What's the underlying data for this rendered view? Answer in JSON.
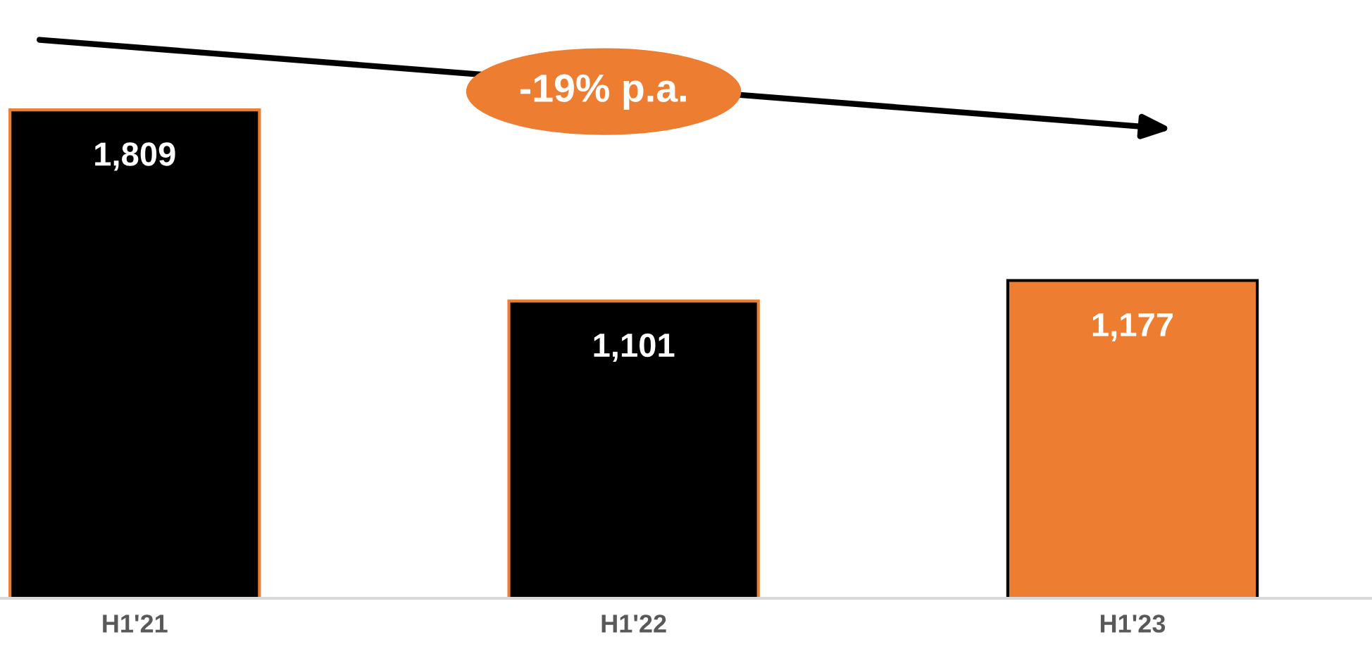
{
  "chart_data": {
    "type": "bar",
    "categories": [
      "H1'21",
      "H1'22",
      "H1'23"
    ],
    "values": [
      1809,
      1101,
      1177
    ],
    "colors": [
      "#000000",
      "#000000",
      "#ed7d31"
    ],
    "value_labels": [
      "1,809",
      "1,101",
      "1,177"
    ],
    "annotations": [
      "-19% p.a."
    ]
  }
}
